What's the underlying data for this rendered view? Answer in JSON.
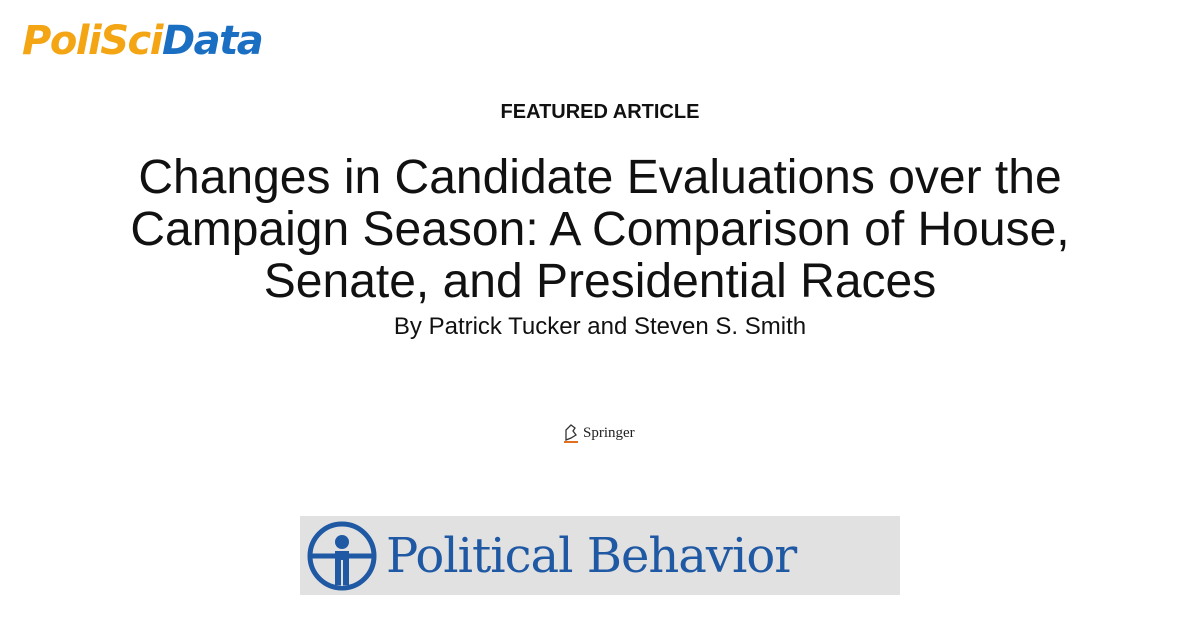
{
  "logo": {
    "parts": [
      "Poli",
      "Sci",
      "Data"
    ]
  },
  "label": "FEATURED ARTICLE",
  "article": {
    "title": "Changes in Candidate Evaluations over the Campaign Season: A Comparison of House, Senate, and Presidential Races",
    "authors": "By Patrick Tucker and Steven S. Smith"
  },
  "publisher": "Springer",
  "journal": "Political Behavior"
}
